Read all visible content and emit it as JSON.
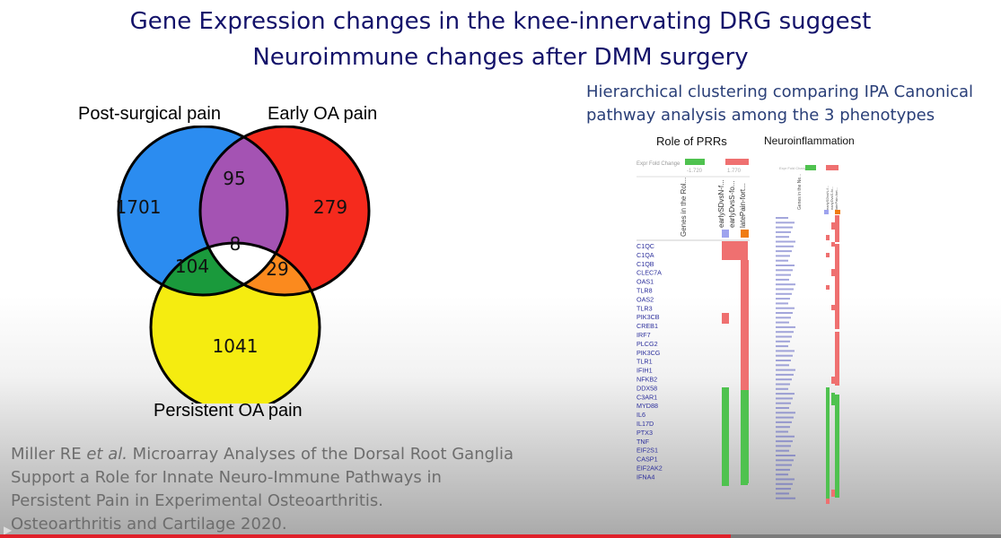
{
  "slide": {
    "title_lines": [
      "Gene Expression changes in the knee-innervating DRG suggest",
      "Neuroimmune changes after DMM surgery"
    ]
  },
  "venn": {
    "labels": {
      "post_surgical": "Post-surgical pain",
      "early_oa": "Early OA pain",
      "persistent_oa": "Persistent OA pain"
    },
    "counts": {
      "post_only": "1701",
      "early_only": "279",
      "persistent_only": "1041",
      "post_early": "95",
      "post_persistent": "104",
      "early_persistent": "29",
      "all_three": "8"
    },
    "colors": {
      "post_only": "#2b8cf0",
      "early_only": "#f52a1d",
      "persistent_only": "#f5ec10",
      "post_early": "#a453b3",
      "post_persistent": "#1a9a3c",
      "early_persistent": "#fb8a1e",
      "all_three": "#ffffff"
    }
  },
  "citation": {
    "author": "Miller RE ",
    "etal": "et al.",
    "line1_rest": " Microarray Analyses of the Dorsal Root Ganglia",
    "line2": "Support a Role for Innate Neuro-Immune Pathways in",
    "line3": "Persistent Pain in Experimental Osteoarthritis.",
    "line4": "Osteoarthritis and Cartilage 2020."
  },
  "ipa": {
    "caption_lines": [
      "Hierarchical clustering comparing IPA Canonical",
      "pathway analysis among the 3 phenotypes"
    ],
    "panel_prrs": {
      "title": "Role of PRRs",
      "legend_label": "Expr Fold Change",
      "legend_min": "-1.720",
      "legend_max": "1.770",
      "column_headers": [
        "Genes in the Rol...",
        "earlySDvsN-f...",
        "earlyDvsS-fo...",
        "latePain-fort..."
      ],
      "genes": [
        "C1QC",
        "C1QA",
        "C1QB",
        "CLEC7A",
        "OAS1",
        "TLR8",
        "OAS2",
        "TLR3",
        "PIK3CB",
        "CREB1",
        "IRF7",
        "PLCG2",
        "PIK3CG",
        "TLR1",
        "IFIH1",
        "NFKB2",
        "DDX58",
        "C3AR1",
        "MYD88",
        "IL6",
        "IL17D",
        "PTX3",
        "TNF",
        "EIF2S1",
        "CASP1",
        "EIF2AK2",
        "IFNA4"
      ]
    },
    "panel_neuro": {
      "title": "Neuroinflammation",
      "header": "Genes in the Ne..."
    },
    "colors": {
      "up": "#ef7070",
      "down": "#4fc24f",
      "col1": "#9ea3ee",
      "col3": "#f07c12",
      "gene_text": "#2c2f9c"
    }
  },
  "player": {
    "progress_percent": 73
  }
}
